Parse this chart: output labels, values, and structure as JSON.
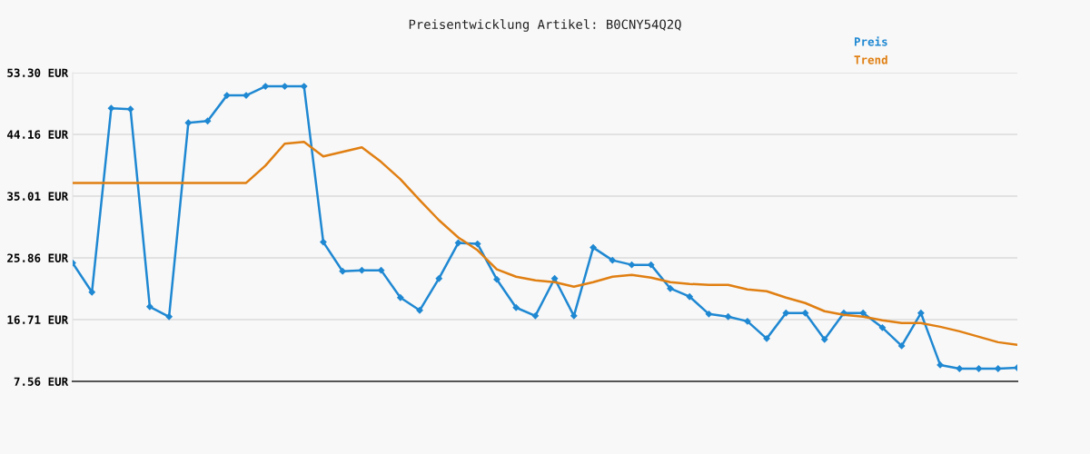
{
  "chart_data": {
    "type": "line",
    "title": "Preisentwicklung Artikel: B0CNY54Q2Q",
    "categories": [
      null,
      null,
      null,
      null,
      null,
      null,
      null,
      null,
      null,
      null,
      null,
      null,
      null,
      null,
      null,
      null,
      null,
      null,
      null,
      null,
      null,
      null,
      null,
      null,
      null,
      null,
      null,
      null,
      null,
      null,
      null,
      null,
      null,
      null,
      null,
      null,
      null,
      null,
      null,
      null,
      null,
      null,
      null,
      null,
      null,
      null,
      null,
      null,
      null,
      null
    ],
    "series": [
      {
        "name": "Preis",
        "color": "#1f88d2",
        "marker": "diamond",
        "values": [
          25.1,
          20.78,
          48.03,
          47.9,
          18.62,
          17.14,
          45.87,
          46.14,
          49.92,
          49.92,
          51.27,
          51.27,
          51.27,
          28.2,
          23.88,
          24.02,
          24.02,
          19.97,
          18.08,
          22.8,
          28.07,
          27.93,
          22.67,
          18.49,
          17.27,
          22.8,
          17.27,
          27.39,
          25.5,
          24.83,
          24.83,
          21.32,
          20.11,
          17.54,
          17.14,
          16.46,
          13.9,
          17.68,
          17.68,
          13.77,
          17.68,
          17.68,
          15.52,
          12.82,
          17.68,
          9.99,
          9.45,
          9.45,
          9.45,
          9.58
        ]
      },
      {
        "name": "Trend",
        "color": "#e07f12",
        "marker": "none",
        "values": [
          36.97,
          36.97,
          36.97,
          36.97,
          36.97,
          36.97,
          36.97,
          36.97,
          36.97,
          36.97,
          39.53,
          42.77,
          43.04,
          40.88,
          41.55,
          42.23,
          40.07,
          37.51,
          34.41,
          31.44,
          28.88,
          26.99,
          24.15,
          23.07,
          22.53,
          22.26,
          21.59,
          22.26,
          23.07,
          23.34,
          22.94,
          22.26,
          21.99,
          21.86,
          21.86,
          21.18,
          20.91,
          19.97,
          19.16,
          17.95,
          17.41,
          17.14,
          16.6,
          16.19,
          16.19,
          15.65,
          14.98,
          14.17,
          13.36,
          12.96
        ]
      }
    ],
    "ylim": [
      7.56,
      53.3
    ],
    "yticks": [
      {
        "value": 7.56,
        "label": "7.56 EUR"
      },
      {
        "value": 16.71,
        "label": "16.71 EUR"
      },
      {
        "value": 25.86,
        "label": "25.86 EUR"
      },
      {
        "value": 35.01,
        "label": "35.01 EUR"
      },
      {
        "value": 44.16,
        "label": "44.16 EUR"
      },
      {
        "value": 53.3,
        "label": "53.30 EUR"
      }
    ],
    "tick_labels": "y",
    "grid": "y",
    "legend": "top right",
    "line_style": "solid"
  }
}
